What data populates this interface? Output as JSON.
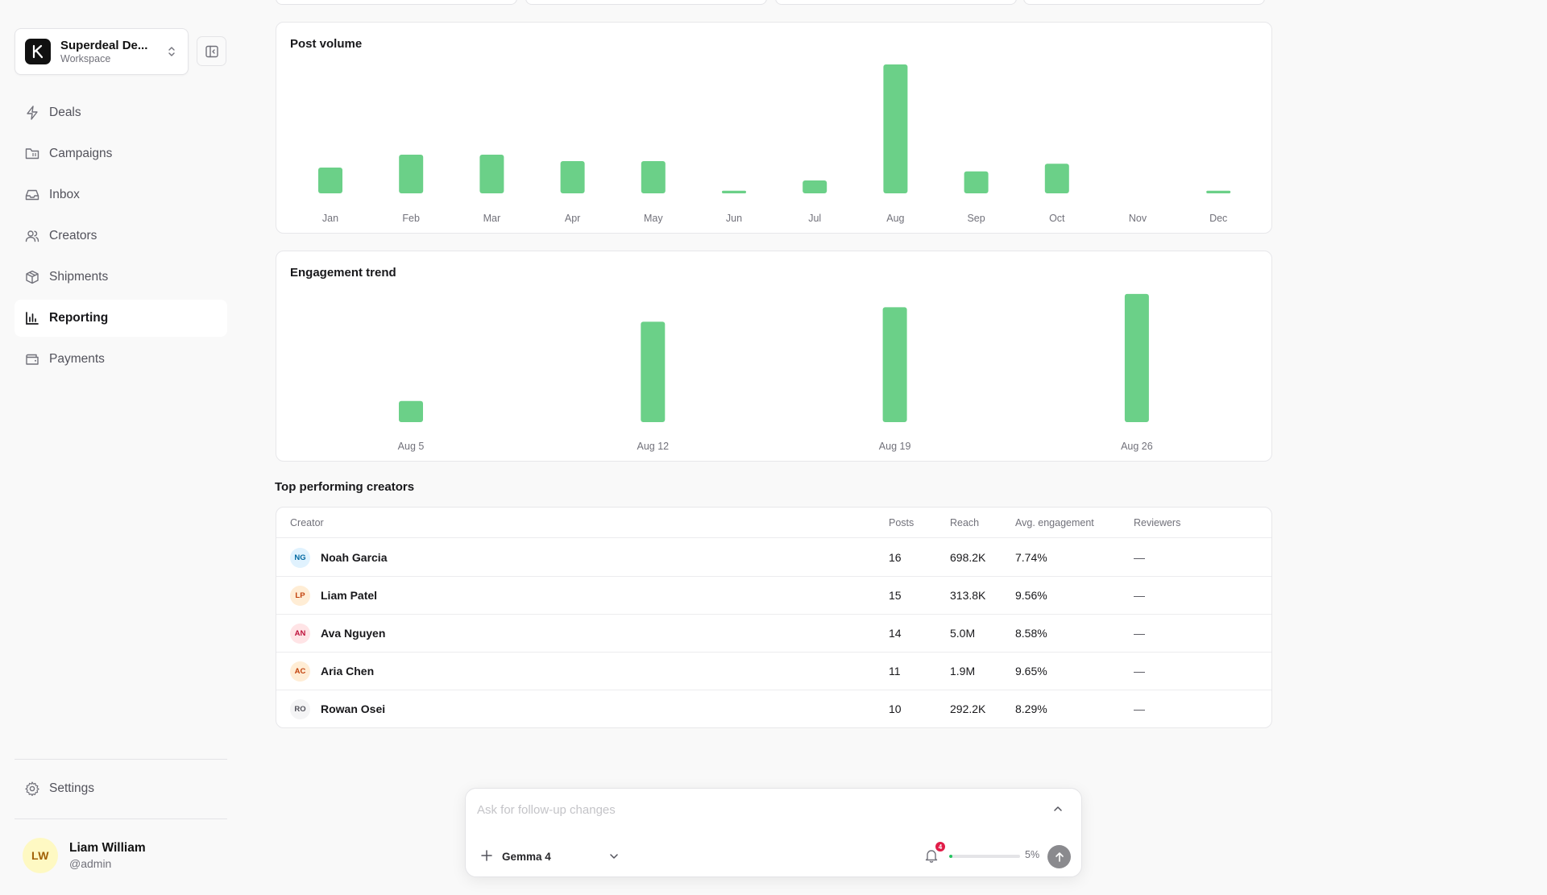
{
  "workspace": {
    "name": "Superdeal De...",
    "subtitle": "Workspace"
  },
  "nav": [
    {
      "key": "deals",
      "label": "Deals",
      "icon": "bolt-icon",
      "active": false
    },
    {
      "key": "campaigns",
      "label": "Campaigns",
      "icon": "folder-calendar-icon",
      "active": false
    },
    {
      "key": "inbox",
      "label": "Inbox",
      "icon": "inbox-icon",
      "active": false
    },
    {
      "key": "creators",
      "label": "Creators",
      "icon": "users-icon",
      "active": false
    },
    {
      "key": "shipments",
      "label": "Shipments",
      "icon": "package-icon",
      "active": false
    },
    {
      "key": "reporting",
      "label": "Reporting",
      "icon": "bar-chart-icon",
      "active": true
    },
    {
      "key": "payments",
      "label": "Payments",
      "icon": "wallet-icon",
      "active": false
    }
  ],
  "settings": {
    "label": "Settings"
  },
  "user": {
    "initials": "LW",
    "name": "Liam William",
    "handle": "@admin"
  },
  "colors": {
    "bar": "#6bd088",
    "accent": "#22c55e",
    "badge": "#e11d48"
  },
  "chart_data": [
    {
      "type": "bar",
      "title": "Post volume",
      "categories": [
        "Jan",
        "Feb",
        "Mar",
        "Apr",
        "May",
        "Jun",
        "Jul",
        "Aug",
        "Sep",
        "Oct",
        "Nov",
        "Dec"
      ],
      "values": [
        2,
        3,
        3,
        2.5,
        2.5,
        0.2,
        1,
        10,
        1.7,
        2.3,
        0,
        0.2
      ],
      "xlabel": "",
      "ylabel": "",
      "ylim": [
        0,
        10
      ],
      "grid": false
    },
    {
      "type": "bar",
      "title": "Engagement trend",
      "categories": [
        "Aug 5",
        "Aug 12",
        "Aug 19",
        "Aug 26"
      ],
      "values": [
        1.6,
        7.6,
        8.7,
        9.7
      ],
      "xlabel": "",
      "ylabel": "",
      "ylim": [
        0,
        10
      ],
      "grid": false
    }
  ],
  "creators_table": {
    "title": "Top performing creators",
    "columns": [
      "Creator",
      "Posts",
      "Reach",
      "Avg. engagement",
      "Reviewers"
    ],
    "rows": [
      {
        "initials": "NG",
        "name": "Noah Garcia",
        "posts": "16",
        "reach": "698.2K",
        "engagement": "7.74%",
        "reviewers": "—",
        "avatar_bg": "#e0f2fe",
        "avatar_fg": "#0369a1"
      },
      {
        "initials": "LP",
        "name": "Liam Patel",
        "posts": "15",
        "reach": "313.8K",
        "engagement": "9.56%",
        "reviewers": "—",
        "avatar_bg": "#ffedd5",
        "avatar_fg": "#c2410c"
      },
      {
        "initials": "AN",
        "name": "Ava Nguyen",
        "posts": "14",
        "reach": "5.0M",
        "engagement": "8.58%",
        "reviewers": "—",
        "avatar_bg": "#ffe4e6",
        "avatar_fg": "#be123c"
      },
      {
        "initials": "AC",
        "name": "Aria Chen",
        "posts": "11",
        "reach": "1.9M",
        "engagement": "9.65%",
        "reviewers": "—",
        "avatar_bg": "#ffedd5",
        "avatar_fg": "#c2410c"
      },
      {
        "initials": "RO",
        "name": "Rowan Osei",
        "posts": "10",
        "reach": "292.2K",
        "engagement": "8.29%",
        "reviewers": "—",
        "avatar_bg": "#f4f4f5",
        "avatar_fg": "#52525b"
      }
    ]
  },
  "composer": {
    "placeholder": "Ask for follow-up changes",
    "model": "Gemma 4",
    "notification_count": "4",
    "progress_percent": 5,
    "progress_label": "5%"
  }
}
